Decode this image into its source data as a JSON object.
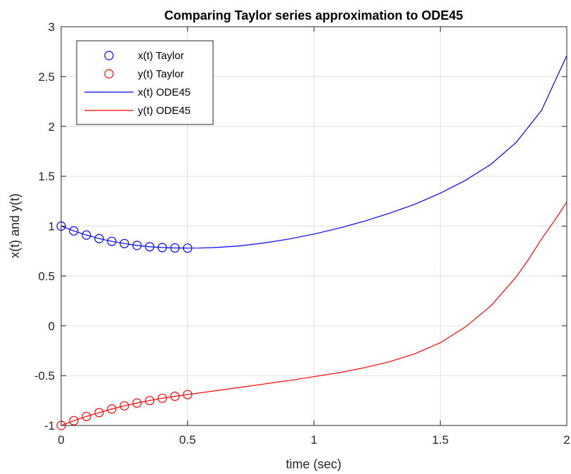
{
  "chart_data": {
    "type": "line",
    "title": "Comparing Taylor series approximation to ODE45",
    "xlabel": "time (sec)",
    "ylabel": "x(t) and y(t)",
    "xlim": [
      0,
      2
    ],
    "ylim": [
      -1,
      3
    ],
    "x_ticks": [
      0,
      0.5,
      1,
      1.5,
      2
    ],
    "x_tick_labels": [
      "0",
      "0.5",
      "1",
      "1.5",
      "2"
    ],
    "y_ticks": [
      -1,
      -0.5,
      0,
      0.5,
      1,
      1.5,
      2,
      2.5,
      3
    ],
    "y_tick_labels": [
      "-1",
      "-0.5",
      "0",
      "0.5",
      "1",
      "1.5",
      "2",
      "2.5",
      "3"
    ],
    "grid": true,
    "legend_position": "top-left",
    "series": [
      {
        "name": "x(t) Taylor",
        "style": "markers",
        "marker": "circle",
        "color": "#0000ff",
        "x": [
          0,
          0.05,
          0.1,
          0.15,
          0.2,
          0.25,
          0.3,
          0.35,
          0.4,
          0.45,
          0.5
        ],
        "y": [
          1.0,
          0.952,
          0.91,
          0.875,
          0.847,
          0.825,
          0.806,
          0.793,
          0.785,
          0.781,
          0.779
        ]
      },
      {
        "name": "y(t) Taylor",
        "style": "markers",
        "marker": "circle",
        "color": "#ff0000",
        "x": [
          0,
          0.05,
          0.1,
          0.15,
          0.2,
          0.25,
          0.3,
          0.35,
          0.4,
          0.45,
          0.5
        ],
        "y": [
          -1.0,
          -0.952,
          -0.91,
          -0.871,
          -0.835,
          -0.803,
          -0.775,
          -0.75,
          -0.727,
          -0.707,
          -0.69
        ]
      },
      {
        "name": "x(t) ODE45",
        "style": "line",
        "color": "#0000ff",
        "x": [
          0,
          0.05,
          0.1,
          0.15,
          0.2,
          0.25,
          0.3,
          0.35,
          0.4,
          0.45,
          0.5,
          0.55,
          0.6,
          0.7,
          0.8,
          0.9,
          1.0,
          1.1,
          1.2,
          1.3,
          1.4,
          1.5,
          1.6,
          1.7,
          1.8,
          1.9,
          2.0
        ],
        "y": [
          1.0,
          0.952,
          0.91,
          0.875,
          0.847,
          0.825,
          0.806,
          0.793,
          0.785,
          0.781,
          0.779,
          0.78,
          0.784,
          0.8,
          0.83,
          0.87,
          0.92,
          0.98,
          1.05,
          1.13,
          1.22,
          1.33,
          1.46,
          1.62,
          1.84,
          2.16,
          2.71
        ]
      },
      {
        "name": "y(t) ODE45",
        "style": "line",
        "color": "#ff0000",
        "x": [
          0,
          0.05,
          0.1,
          0.15,
          0.2,
          0.25,
          0.3,
          0.35,
          0.4,
          0.45,
          0.5,
          0.6,
          0.7,
          0.8,
          0.9,
          1.0,
          1.1,
          1.2,
          1.3,
          1.4,
          1.5,
          1.6,
          1.7,
          1.8,
          1.85,
          1.9,
          1.95,
          2.0
        ],
        "y": [
          -1.0,
          -0.952,
          -0.91,
          -0.871,
          -0.835,
          -0.803,
          -0.775,
          -0.75,
          -0.727,
          -0.707,
          -0.69,
          -0.655,
          -0.62,
          -0.585,
          -0.55,
          -0.51,
          -0.47,
          -0.42,
          -0.36,
          -0.28,
          -0.17,
          -0.01,
          0.2,
          0.49,
          0.67,
          0.87,
          1.05,
          1.24
        ]
      }
    ]
  }
}
